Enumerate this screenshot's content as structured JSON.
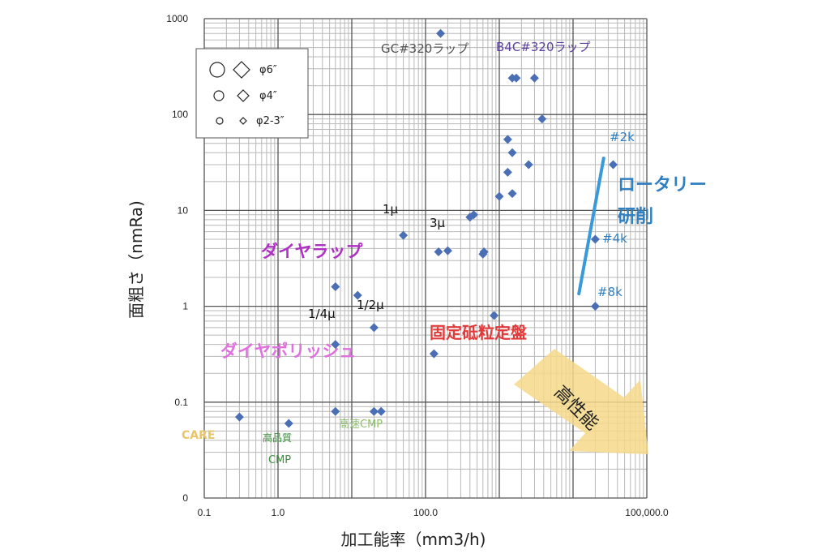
{
  "chart_data": {
    "type": "scatter",
    "x_scale": "log",
    "y_scale": "log",
    "xlabel": "加工能率（mm3/h)",
    "ylabel": "面粗さ（nmRa)",
    "xlim": [
      0.1,
      100000
    ],
    "ylim": [
      0.01,
      1000
    ],
    "grid": true,
    "x_ticks": [
      {
        "v": 0.1,
        "label": "0.1"
      },
      {
        "v": 1,
        "label": "1.0"
      },
      {
        "v": 100,
        "label": "100.0"
      },
      {
        "v": 100000,
        "label": "100,000.0"
      }
    ],
    "y_ticks": [
      {
        "v": 0.01,
        "label": "0"
      },
      {
        "v": 0.1,
        "label": "0.1"
      },
      {
        "v": 1,
        "label": "1"
      },
      {
        "v": 10,
        "label": "10"
      },
      {
        "v": 100,
        "label": "100"
      },
      {
        "v": 1000,
        "label": "1000"
      }
    ],
    "marker_color": "#4a6fb5",
    "points": [
      {
        "x": 0.3,
        "y": 0.07
      },
      {
        "x": 1.4,
        "y": 0.06
      },
      {
        "x": 6,
        "y": 0.08
      },
      {
        "x": 20,
        "y": 0.08
      },
      {
        "x": 25,
        "y": 0.08
      },
      {
        "x": 6,
        "y": 1.6
      },
      {
        "x": 12,
        "y": 1.3
      },
      {
        "x": 6,
        "y": 0.4
      },
      {
        "x": 20,
        "y": 0.6
      },
      {
        "x": 50,
        "y": 5.5
      },
      {
        "x": 150,
        "y": 3.7
      },
      {
        "x": 200,
        "y": 3.8
      },
      {
        "x": 400,
        "y": 8.5
      },
      {
        "x": 450,
        "y": 9
      },
      {
        "x": 600,
        "y": 3.5
      },
      {
        "x": 620,
        "y": 3.7
      },
      {
        "x": 130,
        "y": 0.32
      },
      {
        "x": 850,
        "y": 0.8
      },
      {
        "x": 1000,
        "y": 14
      },
      {
        "x": 1300,
        "y": 25
      },
      {
        "x": 1300,
        "y": 55
      },
      {
        "x": 1500,
        "y": 40
      },
      {
        "x": 1500,
        "y": 15
      },
      {
        "x": 2500,
        "y": 30
      },
      {
        "x": 1500,
        "y": 240
      },
      {
        "x": 1700,
        "y": 240
      },
      {
        "x": 3000,
        "y": 240
      },
      {
        "x": 3800,
        "y": 90
      },
      {
        "x": 160,
        "y": 700
      },
      {
        "x": 20000,
        "y": 5
      },
      {
        "x": 20000,
        "y": 1
      },
      {
        "x": 35000,
        "y": 30
      }
    ],
    "rotary_line": {
      "x": [
        12000,
        26000
      ],
      "y": [
        1.35,
        35
      ],
      "color": "#3a9ad9"
    }
  },
  "legend": {
    "entries": [
      {
        "label": "φ6″",
        "size": "large"
      },
      {
        "label": "φ4″",
        "size": "medium"
      },
      {
        "label": "φ2-3″",
        "size": "small"
      }
    ]
  },
  "annotations": {
    "gc_lap": {
      "text": "GC#320ラップ",
      "color": "#555555"
    },
    "b4c_lap": {
      "text": "B4C#320ラップ",
      "color": "#5b3fa0"
    },
    "diamond_lap": {
      "text": "ダイヤラップ",
      "color": "#b02fc4"
    },
    "diamond_polish": {
      "text": "ダイヤポリッシュ",
      "color": "#e070e0"
    },
    "fixed_abrasive": {
      "text": "固定砥粒定盤",
      "color": "#e03a3a"
    },
    "rotary_grinding_1": {
      "text": "ロータリー",
      "color": "#2f7fc1"
    },
    "rotary_grinding_2": {
      "text": "研削",
      "color": "#2f7fc1"
    },
    "grit_2k": {
      "text": "#2k",
      "color": "#2f7fc1"
    },
    "grit_4k": {
      "text": "#4k",
      "color": "#2f7fc1"
    },
    "grit_8k": {
      "text": "#8k",
      "color": "#2f7fc1"
    },
    "mu_1": {
      "text": "1μ",
      "color": "#111111"
    },
    "mu_3": {
      "text": "3μ",
      "color": "#111111"
    },
    "mu_quarter": {
      "text": "1/4μ",
      "color": "#111111"
    },
    "mu_half": {
      "text": "1/2μ",
      "color": "#111111"
    },
    "care": {
      "text": "CARE",
      "color": "#e8c46a"
    },
    "hq_cmp_1": {
      "text": "高品質",
      "color": "#3f8f3f"
    },
    "hq_cmp_2": {
      "text": "CMP",
      "color": "#3f8f3f"
    },
    "fast_cmp": {
      "text": "高速CMP",
      "color": "#8fbf6f"
    },
    "high_performance": {
      "text": "高性能",
      "color": "#222222",
      "arrow_color": "#f6d98a"
    }
  }
}
